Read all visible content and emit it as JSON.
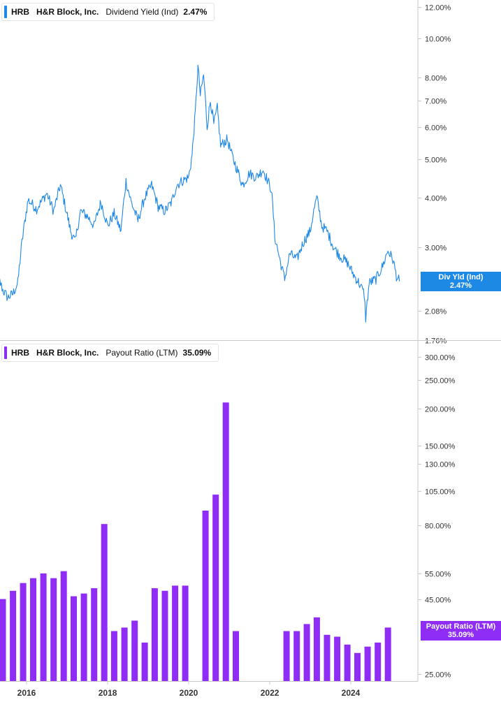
{
  "panels": {
    "top": {
      "ticker": "HRB",
      "company": "H&R Block, Inc.",
      "metric": "Dividend Yield (Ind)",
      "value": "2.47%",
      "badge_label": "Div Yld (Ind)",
      "badge_value": "2.47%",
      "color": "#1e88e5"
    },
    "bottom": {
      "ticker": "HRB",
      "company": "H&R Block, Inc.",
      "metric": "Payout Ratio (LTM)",
      "value": "35.09%",
      "badge_label": "Payout Ratio (LTM)",
      "badge_value": "35.09%",
      "color": "#8f2cf5"
    }
  },
  "chart_data": [
    {
      "type": "line",
      "series": [
        {
          "name": "Dividend Yield (Ind)",
          "points": [
            [
              "2015-03-01",
              2.65
            ],
            [
              "2015-04-15",
              2.55
            ],
            [
              "2015-06-01",
              2.35
            ],
            [
              "2015-07-15",
              2.25
            ],
            [
              "2015-09-01",
              2.3
            ],
            [
              "2015-10-15",
              2.45
            ],
            [
              "2015-11-15",
              3.0
            ],
            [
              "2016-01-15",
              3.95
            ],
            [
              "2016-04-01",
              3.75
            ],
            [
              "2016-07-01",
              4.1
            ],
            [
              "2016-09-01",
              3.7
            ],
            [
              "2016-11-01",
              4.3
            ],
            [
              "2016-12-15",
              3.8
            ],
            [
              "2017-02-01",
              3.3
            ],
            [
              "2017-03-15",
              3.1
            ],
            [
              "2017-05-01",
              3.7
            ],
            [
              "2017-07-01",
              3.6
            ],
            [
              "2017-09-01",
              3.4
            ],
            [
              "2017-11-01",
              3.9
            ],
            [
              "2018-01-01",
              3.4
            ],
            [
              "2018-03-01",
              3.65
            ],
            [
              "2018-05-01",
              3.3
            ],
            [
              "2018-06-15",
              4.4
            ],
            [
              "2018-08-01",
              3.9
            ],
            [
              "2018-10-01",
              3.5
            ],
            [
              "2018-12-01",
              4.0
            ],
            [
              "2019-02-01",
              4.3
            ],
            [
              "2019-04-01",
              3.8
            ],
            [
              "2019-06-01",
              3.7
            ],
            [
              "2019-08-01",
              3.9
            ],
            [
              "2019-09-15",
              4.3
            ],
            [
              "2019-11-01",
              4.4
            ],
            [
              "2020-01-01",
              4.5
            ],
            [
              "2020-02-01",
              5.1
            ],
            [
              "2020-03-01",
              6.5
            ],
            [
              "2020-03-25",
              8.5
            ],
            [
              "2020-04-15",
              7.2
            ],
            [
              "2020-05-15",
              8.1
            ],
            [
              "2020-06-15",
              6.0
            ],
            [
              "2020-07-15",
              7.0
            ],
            [
              "2020-08-15",
              6.1
            ],
            [
              "2020-09-15",
              6.7
            ],
            [
              "2020-10-15",
              5.4
            ],
            [
              "2020-11-15",
              5.5
            ],
            [
              "2020-12-15",
              5.6
            ],
            [
              "2021-01-15",
              5.2
            ],
            [
              "2021-03-01",
              4.8
            ],
            [
              "2021-05-01",
              4.3
            ],
            [
              "2021-07-01",
              4.6
            ],
            [
              "2021-09-01",
              4.5
            ],
            [
              "2021-11-01",
              4.7
            ],
            [
              "2021-12-15",
              4.4
            ],
            [
              "2022-01-15",
              4.2
            ],
            [
              "2022-02-15",
              3.2
            ],
            [
              "2022-04-01",
              2.8
            ],
            [
              "2022-05-15",
              2.5
            ],
            [
              "2022-07-01",
              2.9
            ],
            [
              "2022-09-01",
              2.8
            ],
            [
              "2022-11-01",
              3.1
            ],
            [
              "2023-01-01",
              3.3
            ],
            [
              "2023-02-01",
              3.7
            ],
            [
              "2023-03-01",
              4.0
            ],
            [
              "2023-04-15",
              3.4
            ],
            [
              "2023-06-01",
              3.3
            ],
            [
              "2023-08-01",
              3.0
            ],
            [
              "2023-10-01",
              2.85
            ],
            [
              "2023-12-01",
              2.75
            ],
            [
              "2024-02-01",
              2.55
            ],
            [
              "2024-03-15",
              2.45
            ],
            [
              "2024-05-01",
              2.3
            ],
            [
              "2024-05-15",
              2.0
            ],
            [
              "2024-06-15",
              2.45
            ],
            [
              "2024-08-15",
              2.5
            ],
            [
              "2024-10-15",
              2.7
            ],
            [
              "2024-12-01",
              2.95
            ],
            [
              "2025-01-15",
              2.8
            ],
            [
              "2025-02-15",
              2.55
            ],
            [
              "2025-03-15",
              2.47
            ]
          ]
        }
      ],
      "y_scale": "log",
      "ylim": [
        1.76,
        12.0
      ],
      "y_ticks": [
        "12.00%",
        "10.00%",
        "8.00%",
        "7.00%",
        "6.00%",
        "5.00%",
        "4.00%",
        "3.00%",
        "2.08%",
        "1.76%"
      ],
      "y_tick_values": [
        12.0,
        10.0,
        8.0,
        7.0,
        6.0,
        5.0,
        4.0,
        3.0,
        2.08,
        1.76
      ],
      "current_value": 2.47,
      "grid": false,
      "legend": "top-left"
    },
    {
      "type": "bar",
      "series": [
        {
          "name": "Payout Ratio (LTM)",
          "points": [
            [
              "2015-03-01",
              47
            ],
            [
              "2015-06-01",
              45
            ],
            [
              "2015-09-01",
              48
            ],
            [
              "2015-12-01",
              51
            ],
            [
              "2016-03-01",
              53
            ],
            [
              "2016-06-01",
              55
            ],
            [
              "2016-09-01",
              53
            ],
            [
              "2016-12-01",
              56
            ],
            [
              "2017-03-01",
              46
            ],
            [
              "2017-06-01",
              47
            ],
            [
              "2017-09-01",
              49
            ],
            [
              "2017-12-01",
              81
            ],
            [
              "2018-03-01",
              35
            ],
            [
              "2018-06-01",
              36
            ],
            [
              "2018-09-01",
              38
            ],
            [
              "2018-12-01",
              32
            ],
            [
              "2019-03-01",
              49
            ],
            [
              "2019-06-01",
              48
            ],
            [
              "2019-09-01",
              50
            ],
            [
              "2019-12-01",
              50
            ],
            [
              "2020-06-01",
              90
            ],
            [
              "2020-09-01",
              102
            ],
            [
              "2020-12-01",
              210
            ],
            [
              "2021-03-01",
              35
            ],
            [
              "2022-06-01",
              35
            ],
            [
              "2022-09-01",
              35
            ],
            [
              "2022-12-01",
              37
            ],
            [
              "2023-03-01",
              39
            ],
            [
              "2023-06-01",
              34
            ],
            [
              "2023-09-01",
              33.5
            ],
            [
              "2023-12-01",
              31.5
            ],
            [
              "2024-03-01",
              29.5
            ],
            [
              "2024-06-01",
              31
            ],
            [
              "2024-09-01",
              32
            ],
            [
              "2024-12-01",
              36
            ]
          ]
        }
      ],
      "y_scale": "log",
      "ylim": [
        24.0,
        320.0
      ],
      "y_ticks": [
        "300.00%",
        "250.00%",
        "200.00%",
        "150.00%",
        "130.00%",
        "105.00%",
        "80.00%",
        "55.00%",
        "45.00%",
        "25.00%"
      ],
      "y_tick_values": [
        300,
        250,
        200,
        150,
        130,
        105,
        80,
        55,
        45,
        25
      ],
      "current_value": 35.09,
      "x_ticks": [
        "2016",
        "2018",
        "2020",
        "2022",
        "2024"
      ],
      "x_tick_years": [
        2016,
        2018,
        2020,
        2022,
        2024
      ],
      "grid": false,
      "legend": "top-left"
    }
  ]
}
